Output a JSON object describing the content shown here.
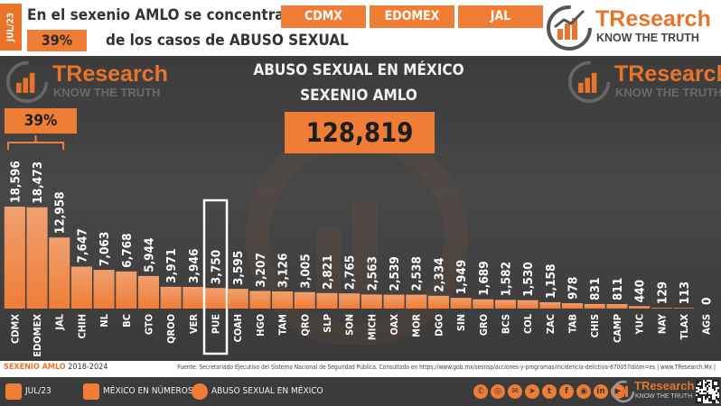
{
  "header": {
    "date_tag": "JUL/23",
    "headline_line1": "En el sexenio AMLO se concentran en",
    "headline_line2": "de los casos de ABUSO SEXUAL",
    "share": "39%",
    "tags": [
      "CDMX",
      "EDOMEX",
      "JAL"
    ]
  },
  "brand": {
    "name": "TResearch",
    "tagline": "KNOW THE TRUTH"
  },
  "colors": {
    "accent": "#ef7d36",
    "bar": "#ef7d36",
    "bar_top": "#f0a070",
    "panel": "#424242"
  },
  "chart_data": {
    "type": "bar",
    "title": "ABUSO SEXUAL EN MÉXICO",
    "subtitle": "SEXENIO AMLO",
    "total": "128,819",
    "share_label": "39%",
    "highlight": "PUE",
    "categories": [
      "CDMX",
      "EDOMEX",
      "JAL",
      "CHIH",
      "NL",
      "BC",
      "GTO",
      "QROO",
      "VER",
      "PUE",
      "COAH",
      "HGO",
      "TAM",
      "QRO",
      "SLP",
      "SON",
      "MICH",
      "OAX",
      "MOR",
      "DGO",
      "SIN",
      "GRO",
      "BCS",
      "COL",
      "ZAC",
      "TAB",
      "CHIS",
      "CAMP",
      "YUC",
      "NAY",
      "TLAX",
      "AGS"
    ],
    "values": [
      18596,
      18473,
      12958,
      7647,
      7063,
      6768,
      5944,
      3971,
      3946,
      3750,
      3595,
      3207,
      3126,
      3005,
      2821,
      2765,
      2563,
      2539,
      2538,
      2334,
      1949,
      1689,
      1582,
      1530,
      1158,
      978,
      831,
      811,
      440,
      129,
      113,
      0
    ],
    "value_labels": [
      "18,596",
      "18,473",
      "12,958",
      "7,647",
      "7,063",
      "6,768",
      "5,944",
      "3,971",
      "3,946",
      "3,750",
      "3,595",
      "3,207",
      "3,126",
      "3,005",
      "2,821",
      "2,765",
      "2,563",
      "2,539",
      "2,538",
      "2,334",
      "1,949",
      "1,689",
      "1,582",
      "1,530",
      "1,158",
      "978",
      "831",
      "811",
      "440",
      "129",
      "113",
      "0"
    ],
    "ylim": [
      0,
      18596
    ]
  },
  "source": {
    "period_label": "SEXENIO AMLO",
    "period_range": "2018-2024",
    "text": "Fuente: Secretariado Ejecutivo del Sistema Nacional de Seguridad Pública. Consultado en https://www.gob.mx/sesnsp/acciones-y-programas/incidencia-delictiva-87005?idiom=es | www.TResearch.Mx |"
  },
  "footer": {
    "date": "JUL/23",
    "section": "MÉXICO EN NÚMEROS",
    "topic": "ABUSO SEXUAL EN MÉXICO",
    "social_icons": [
      "whatsapp-icon",
      "globe-icon",
      "mail-icon",
      "telegram-icon",
      "twitter-icon",
      "facebook-icon",
      "instagram-icon",
      "linkedin-icon",
      "youtube-icon"
    ]
  }
}
